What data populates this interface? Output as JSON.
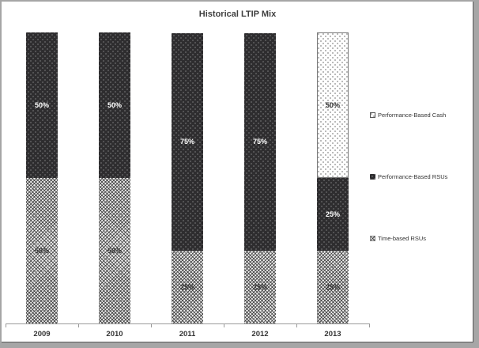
{
  "chart_data": {
    "type": "bar",
    "variant": "stacked-column-100",
    "title": "Historical LTIP Mix",
    "categories": [
      "2009",
      "2010",
      "2011",
      "2012",
      "2013"
    ],
    "series": [
      {
        "name": "Time-based RSUs",
        "pattern": "hatch",
        "label_color": "#333333",
        "values": [
          50,
          50,
          25,
          25,
          25
        ]
      },
      {
        "name": "Performance-Based RSUs",
        "pattern": "dark-dot",
        "label_color": "#ffffff",
        "values": [
          50,
          50,
          75,
          75,
          25
        ]
      },
      {
        "name": "Performance-Based Cash",
        "pattern": "white-dot",
        "label_color": "#333333",
        "values": [
          0,
          0,
          0,
          0,
          50
        ]
      }
    ],
    "value_suffix": "%",
    "ylim": [
      0,
      100
    ],
    "grid": false,
    "y_axis_labels": false,
    "legend_position": "right"
  },
  "legend": {
    "items": [
      {
        "label": "Performance-Based Cash",
        "pattern": "white-dot"
      },
      {
        "label": "Performance-Based RSUs",
        "pattern": "dark-dot"
      },
      {
        "label": "Time-based RSUs",
        "pattern": "hatch"
      }
    ]
  },
  "colors": {
    "dark_fill": "#2e2d2f",
    "hatch_base": "#f0f0f0",
    "axis": "#9a9a9a",
    "title_text": "#3f3f3f",
    "tick_label_text": "#333333",
    "frame_border": "#a6a6a6",
    "frame_inner_line": "#595959"
  }
}
